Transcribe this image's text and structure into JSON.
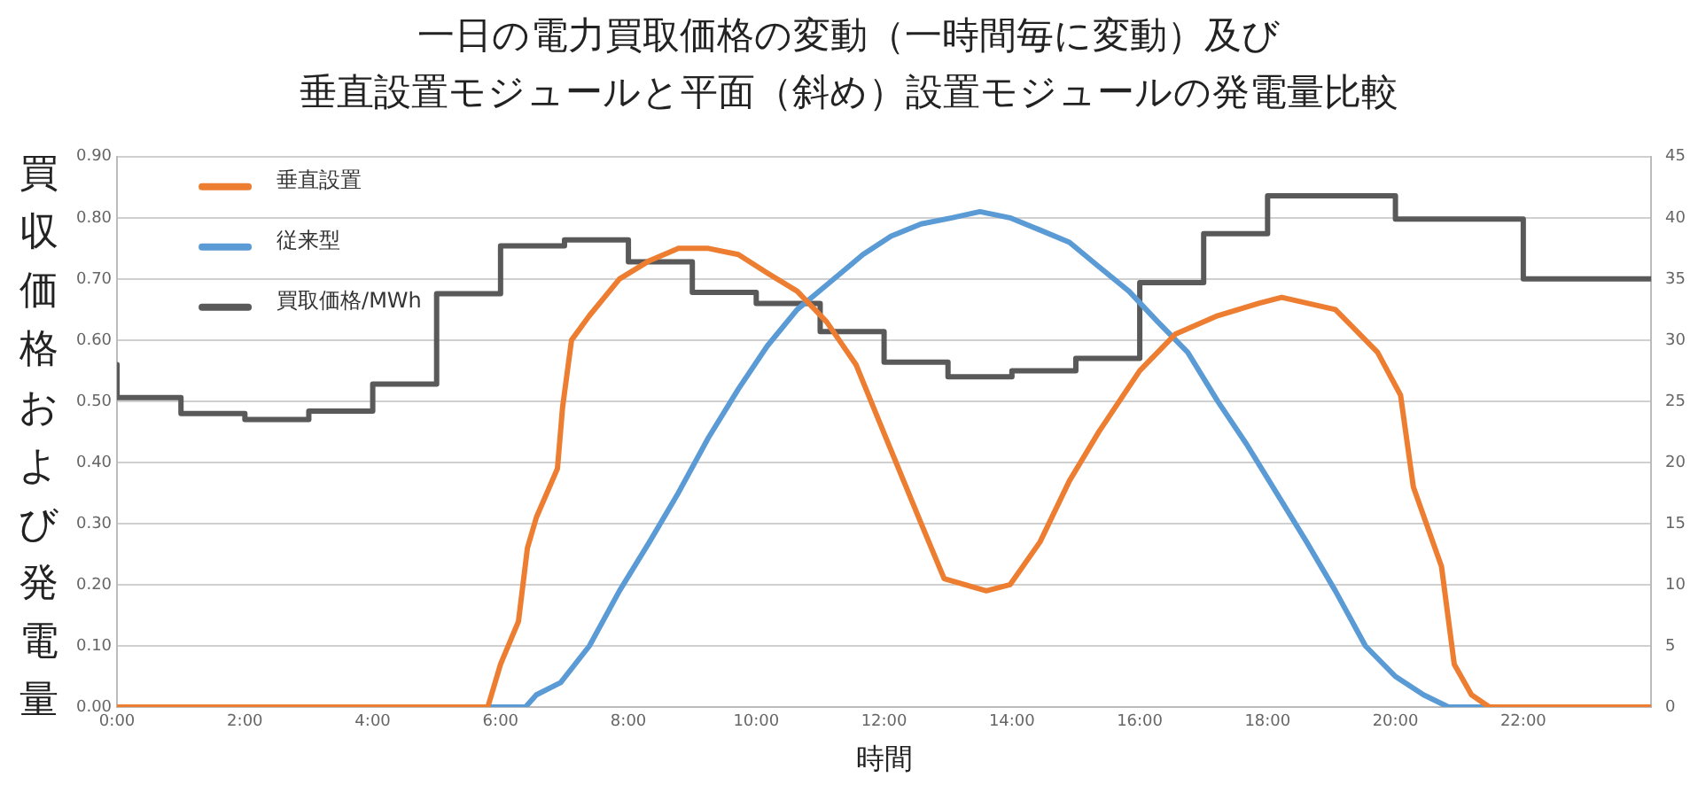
{
  "chart_data": {
    "type": "line",
    "title": "一日の電力買取価格の変動（一時間毎に変動）及び",
    "subtitle": "垂直設置モジュールと平面（斜め）設置モジュールの発電量比較",
    "xlabel": "時間",
    "ylabel": "買収価格および発電量",
    "xlim": [
      0,
      24
    ],
    "xticks": [
      {
        "value": 0,
        "label": "0:00"
      },
      {
        "value": 2,
        "label": "2:00"
      },
      {
        "value": 4,
        "label": "4:00"
      },
      {
        "value": 6,
        "label": "6:00"
      },
      {
        "value": 8,
        "label": "8:00"
      },
      {
        "value": 10,
        "label": "10:00"
      },
      {
        "value": 12,
        "label": "12:00"
      },
      {
        "value": 14,
        "label": "14:00"
      },
      {
        "value": 16,
        "label": "16:00"
      },
      {
        "value": 18,
        "label": "18:00"
      },
      {
        "value": 20,
        "label": "20:00"
      },
      {
        "value": 22,
        "label": "22:00"
      }
    ],
    "ylim": [
      0,
      0.9
    ],
    "yticks": [
      {
        "value": 0,
        "label": "0.00"
      },
      {
        "value": 0.1,
        "label": "0.10"
      },
      {
        "value": 0.2,
        "label": "0.20"
      },
      {
        "value": 0.3,
        "label": "0.30"
      },
      {
        "value": 0.4,
        "label": "0.40"
      },
      {
        "value": 0.5,
        "label": "0.50"
      },
      {
        "value": 0.6,
        "label": "0.60"
      },
      {
        "value": 0.7,
        "label": "0.70"
      },
      {
        "value": 0.8,
        "label": "0.80"
      },
      {
        "value": 0.9,
        "label": "0.90"
      }
    ],
    "y2lim": [
      0,
      45
    ],
    "y2ticks": [
      0,
      5,
      10,
      15,
      20,
      25,
      30,
      35,
      40,
      45
    ],
    "grid": "y",
    "legend": "top left",
    "marker": "none",
    "line_style": "solid",
    "series": [
      {
        "name": "垂直設置",
        "color": "#ed7d31",
        "x": [
          0,
          5.8,
          6.0,
          6.28,
          6.42,
          6.56,
          6.89,
          6.97,
          7.11,
          7.39,
          7.86,
          8.33,
          8.78,
          9.25,
          9.72,
          10.17,
          10.64,
          11.1,
          11.56,
          12.03,
          12.58,
          12.94,
          13.6,
          13.97,
          14.44,
          14.9,
          15.36,
          16.0,
          16.56,
          17.22,
          17.86,
          18.22,
          19.06,
          19.72,
          20.08,
          20.28,
          20.72,
          20.92,
          21.19,
          21.47,
          24
        ],
        "values": [
          0,
          0,
          0.07,
          0.14,
          0.26,
          0.31,
          0.39,
          0.49,
          0.6,
          0.64,
          0.7,
          0.73,
          0.75,
          0.75,
          0.74,
          0.71,
          0.68,
          0.63,
          0.56,
          0.44,
          0.3,
          0.21,
          0.19,
          0.2,
          0.27,
          0.37,
          0.45,
          0.55,
          0.61,
          0.64,
          0.66,
          0.67,
          0.65,
          0.58,
          0.51,
          0.36,
          0.23,
          0.07,
          0.02,
          0,
          0
        ]
      },
      {
        "name": "従来型",
        "color": "#5b9bd5",
        "x": [
          0,
          6.39,
          6.56,
          6.94,
          7.39,
          7.86,
          8.33,
          8.78,
          9.25,
          9.72,
          10.17,
          10.64,
          11.1,
          11.67,
          12.11,
          12.58,
          13.06,
          13.5,
          13.97,
          14.44,
          14.9,
          15.36,
          15.83,
          16.28,
          16.75,
          17.22,
          17.67,
          18.14,
          18.61,
          19.06,
          19.53,
          20.0,
          20.44,
          20.83,
          24
        ],
        "values": [
          0,
          0,
          0.02,
          0.04,
          0.1,
          0.19,
          0.27,
          0.35,
          0.44,
          0.52,
          0.59,
          0.65,
          0.69,
          0.74,
          0.77,
          0.79,
          0.8,
          0.81,
          0.8,
          0.78,
          0.76,
          0.72,
          0.68,
          0.63,
          0.58,
          0.5,
          0.43,
          0.35,
          0.27,
          0.19,
          0.1,
          0.05,
          0.02,
          0,
          0
        ]
      },
      {
        "name": "買取価格/MWh",
        "color": "#595959",
        "type": "step",
        "axis": "y2",
        "x": [
          0,
          1,
          2,
          3,
          4,
          5,
          6,
          7,
          8,
          9,
          10,
          11,
          12,
          13,
          14,
          15,
          16,
          17,
          18,
          19,
          20,
          21,
          22,
          23,
          24
        ],
        "values": [
          28,
          25.3,
          24,
          23.5,
          24.2,
          26.4,
          33.8,
          37.7,
          38.2,
          36.4,
          33.9,
          33,
          30.7,
          28.2,
          27,
          27.5,
          28.5,
          34.7,
          38.7,
          41.8,
          41.8,
          39.9,
          39.9,
          35,
          35
        ]
      }
    ]
  }
}
